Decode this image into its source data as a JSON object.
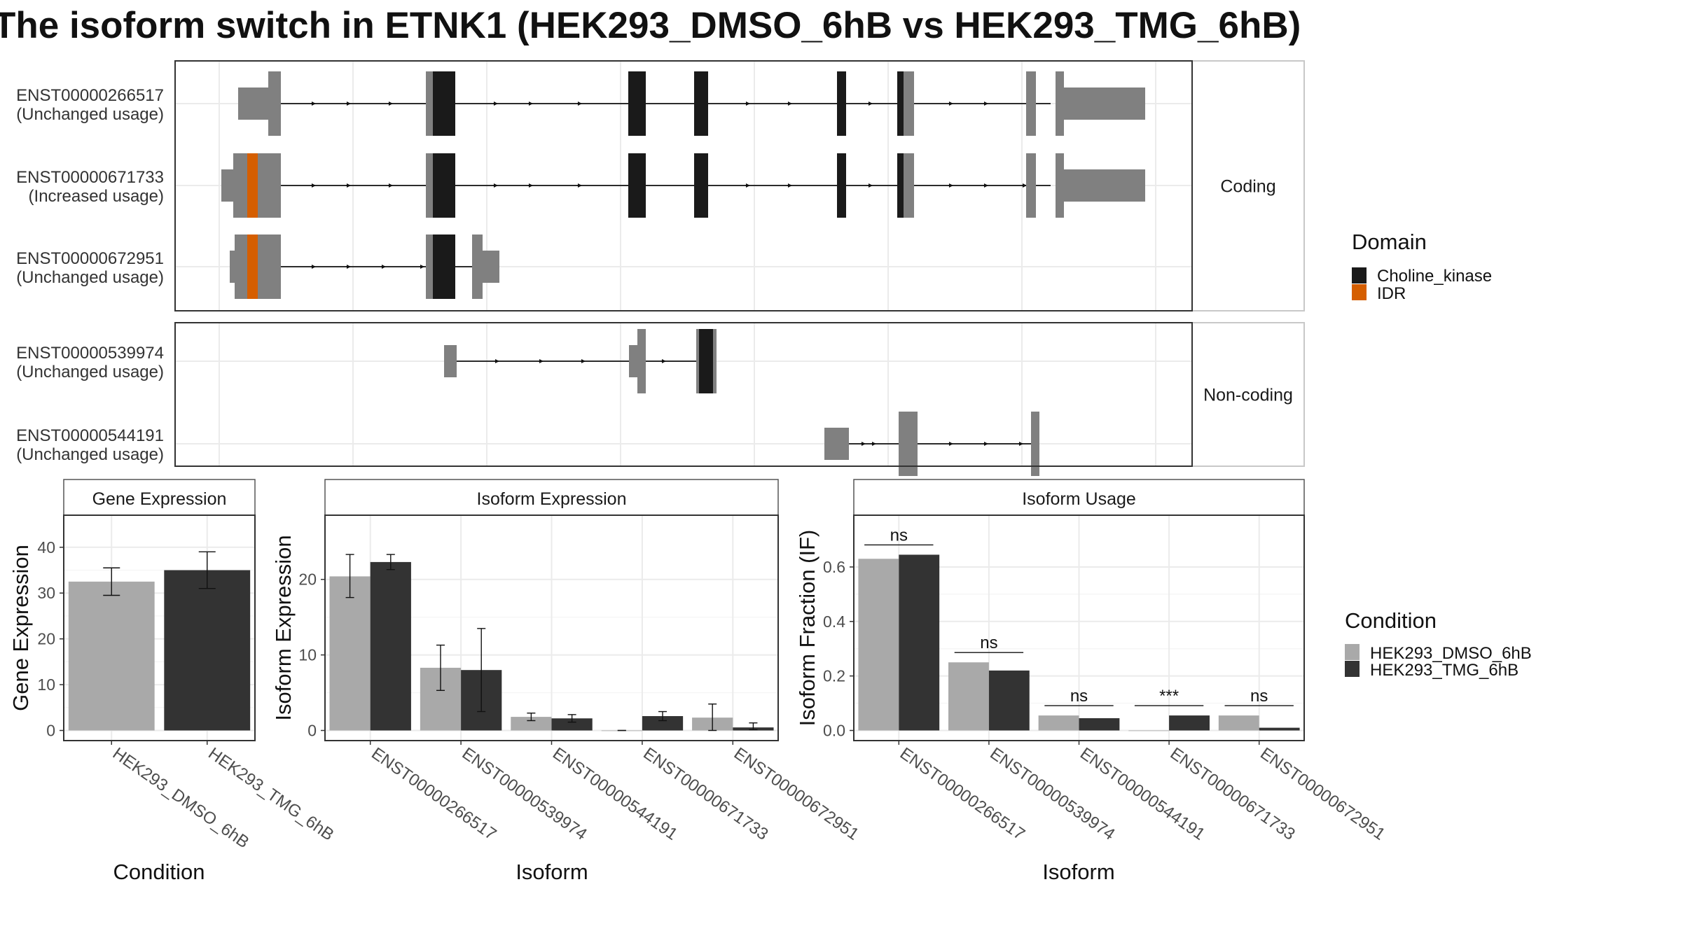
{
  "title": "The isoform switch in ETNK1 (HEK293_DMSO_6hB vs HEK293_TMG_6hB)",
  "colors": {
    "cond1": "#a9a9a9",
    "cond2": "#333333",
    "utr": "#808080",
    "choline_kinase": "#1a1a1a",
    "idr": "#d55e00",
    "grid": "#ebebeb",
    "strip": "#ffffff"
  },
  "chart_data": [
    {
      "type": "gene-structure",
      "panels": [
        {
          "label": "Coding",
          "transcripts": [
            {
              "id": "ENST00000266517",
              "usage": "(Unchanged usage)"
            },
            {
              "id": "ENST00000671733",
              "usage": "(Increased usage)"
            },
            {
              "id": "ENST00000672951",
              "usage": "(Unchanged usage)"
            }
          ]
        },
        {
          "label": "Non-coding",
          "transcripts": [
            {
              "id": "ENST00000539974",
              "usage": "(Unchanged usage)"
            },
            {
              "id": "ENST00000544191",
              "usage": "(Unchanged usage)"
            }
          ]
        }
      ],
      "legend": {
        "title": "Domain",
        "entries": [
          "Choline_kinase",
          "IDR"
        ]
      }
    },
    {
      "type": "bar",
      "strip": "Gene Expression",
      "xlabel": "Condition",
      "ylabel": "Gene Expression",
      "ylim": [
        0,
        47
      ],
      "yticks": [
        0,
        10,
        20,
        30,
        40
      ],
      "categories": [
        "HEK293_DMSO_6hB",
        "HEK293_TMG_6hB"
      ],
      "values": [
        32.5,
        35.0
      ],
      "err": [
        [
          29.5,
          35.5
        ],
        [
          31.0,
          39.0
        ]
      ]
    },
    {
      "type": "bar",
      "strip": "Isoform Expression",
      "xlabel": "Isoform",
      "ylabel": "Isoform Expression",
      "ylim": [
        0,
        28.5
      ],
      "yticks": [
        0,
        10,
        20
      ],
      "categories": [
        "ENST00000266517",
        "ENST00000539974",
        "ENST00000544191",
        "ENST00000671733",
        "ENST00000672951"
      ],
      "series": [
        {
          "name": "HEK293_DMSO_6hB",
          "values": [
            20.4,
            8.3,
            1.8,
            0.0,
            1.7
          ],
          "err": [
            [
              17.6,
              23.3
            ],
            [
              5.3,
              11.3
            ],
            [
              1.3,
              2.3
            ],
            [
              0.0,
              0.0
            ],
            [
              0.0,
              3.5
            ]
          ]
        },
        {
          "name": "HEK293_TMG_6hB",
          "values": [
            22.3,
            8.0,
            1.6,
            1.9,
            0.4
          ],
          "err": [
            [
              21.3,
              23.3
            ],
            [
              2.5,
              13.5
            ],
            [
              1.1,
              2.1
            ],
            [
              1.3,
              2.5
            ],
            [
              0.1,
              1.0
            ]
          ]
        }
      ]
    },
    {
      "type": "bar",
      "strip": "Isoform Usage",
      "xlabel": "Isoform",
      "ylabel": "Isoform Fraction (IF)",
      "ylim": [
        0,
        0.79
      ],
      "yticks": [
        0.0,
        0.2,
        0.4,
        0.6
      ],
      "categories": [
        "ENST00000266517",
        "ENST00000539974",
        "ENST00000544191",
        "ENST00000671733",
        "ENST00000672951"
      ],
      "series": [
        {
          "name": "HEK293_DMSO_6hB",
          "values": [
            0.63,
            0.25,
            0.055,
            0.0,
            0.055
          ]
        },
        {
          "name": "HEK293_TMG_6hB",
          "values": [
            0.645,
            0.22,
            0.045,
            0.055,
            0.01
          ]
        }
      ],
      "significance": [
        "ns",
        "ns",
        "ns",
        "***",
        "ns"
      ]
    }
  ],
  "condition_legend": {
    "title": "Condition",
    "entries": [
      "HEK293_DMSO_6hB",
      "HEK293_TMG_6hB"
    ]
  }
}
